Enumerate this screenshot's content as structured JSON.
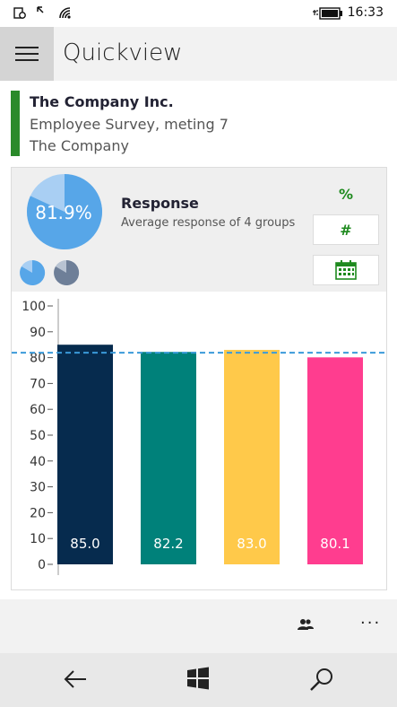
{
  "status": {
    "time": "16:33"
  },
  "header": {
    "title": "Quickview",
    "menu_icon": "hamburger-icon"
  },
  "company": {
    "name": "The Company Inc.",
    "survey": "Employee Survey, meting 7",
    "org": "The Company",
    "accent": "#2a8a2a"
  },
  "response": {
    "value": 81.9,
    "value_label": "81.9%",
    "title": "Response",
    "subtitle": "Average response of 4 groups",
    "percent_label": "%",
    "count_label": "#",
    "calendar_icon": "calendar-icon"
  },
  "chart_data": {
    "type": "bar",
    "categories": [
      "",
      "",
      "",
      ""
    ],
    "values": [
      85.0,
      82.2,
      83.0,
      80.1
    ],
    "labels": [
      "85.0",
      "82.2",
      "83.0",
      "80.1"
    ],
    "colors": [
      "#062b4e",
      "#00817a",
      "#ffc94a",
      "#ff3d8f"
    ],
    "ylim": [
      0,
      100
    ],
    "yticks": [
      "0",
      "10",
      "20",
      "30",
      "40",
      "50",
      "60",
      "70",
      "80",
      "90",
      "100"
    ],
    "reference_line": 81.9,
    "reference_color": "#3a9ad9"
  },
  "appbar": {
    "people_icon": "people-icon",
    "more_label": "···"
  },
  "navbar": {
    "back_icon": "back-arrow-icon",
    "start_icon": "windows-logo-icon",
    "search_icon": "search-icon"
  }
}
